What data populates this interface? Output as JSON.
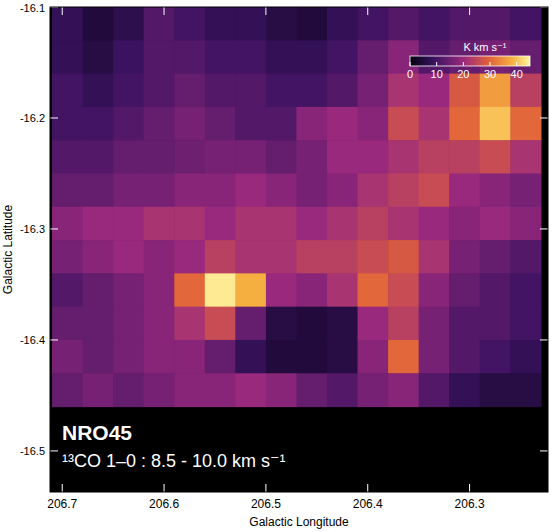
{
  "chart_data": {
    "type": "heatmap",
    "xlabel": "Galactic Longitude",
    "ylabel": "Galactic Latitude",
    "xlim": [
      206.712,
      206.223
    ],
    "ylim": [
      -16.537,
      -16.1
    ],
    "xticks": [
      206.7,
      206.6,
      206.5,
      206.4,
      206.3
    ],
    "yticks": [
      -16.1,
      -16.2,
      -16.3,
      -16.4,
      -16.5
    ],
    "x_bins": [
      206.71,
      206.68,
      206.65,
      206.62,
      206.59,
      206.56,
      206.53,
      206.5,
      206.47,
      206.44,
      206.41,
      206.38,
      206.35,
      206.32,
      206.29,
      206.26,
      206.23
    ],
    "y_bins": [
      -16.1,
      -16.13,
      -16.16,
      -16.19,
      -16.22,
      -16.25,
      -16.28,
      -16.31,
      -16.34,
      -16.37,
      -16.4,
      -16.43,
      -16.46
    ],
    "cells": [
      [
        8,
        5,
        7,
        12,
        10,
        8,
        8,
        6,
        5,
        8,
        10,
        12,
        10,
        12,
        12,
        10
      ],
      [
        8,
        6,
        9,
        12,
        12,
        10,
        10,
        8,
        8,
        10,
        14,
        18,
        12,
        14,
        16,
        14
      ],
      [
        10,
        8,
        10,
        12,
        14,
        12,
        12,
        10,
        10,
        12,
        16,
        22,
        20,
        28,
        36,
        24
      ],
      [
        10,
        10,
        12,
        14,
        16,
        14,
        12,
        12,
        18,
        20,
        18,
        26,
        22,
        30,
        40,
        30
      ],
      [
        12,
        12,
        14,
        14,
        15,
        16,
        16,
        14,
        16,
        20,
        20,
        22,
        24,
        24,
        26,
        22
      ],
      [
        14,
        14,
        16,
        16,
        18,
        18,
        20,
        18,
        16,
        18,
        22,
        24,
        26,
        20,
        18,
        16
      ],
      [
        18,
        20,
        20,
        22,
        22,
        20,
        22,
        22,
        20,
        22,
        24,
        22,
        20,
        18,
        20,
        18
      ],
      [
        16,
        18,
        20,
        18,
        20,
        24,
        22,
        22,
        24,
        24,
        26,
        28,
        22,
        16,
        14,
        12
      ],
      [
        12,
        14,
        16,
        18,
        30,
        44,
        38,
        20,
        18,
        22,
        30,
        26,
        18,
        14,
        12,
        10
      ],
      [
        14,
        14,
        16,
        18,
        22,
        26,
        14,
        6,
        5,
        6,
        20,
        24,
        16,
        12,
        12,
        10
      ],
      [
        16,
        14,
        16,
        18,
        18,
        14,
        8,
        5,
        5,
        6,
        18,
        30,
        16,
        12,
        10,
        8
      ],
      [
        14,
        16,
        14,
        16,
        18,
        18,
        20,
        18,
        14,
        12,
        16,
        18,
        12,
        8,
        6,
        6
      ]
    ],
    "colorbar": {
      "label": "K km s⁻¹",
      "range": [
        0,
        45
      ],
      "ticks": [
        0,
        10,
        20,
        30,
        40
      ]
    },
    "annotations": [
      "NRO45",
      "¹³CO 1–0 : 8.5 - 10.0 km s⁻¹"
    ]
  }
}
